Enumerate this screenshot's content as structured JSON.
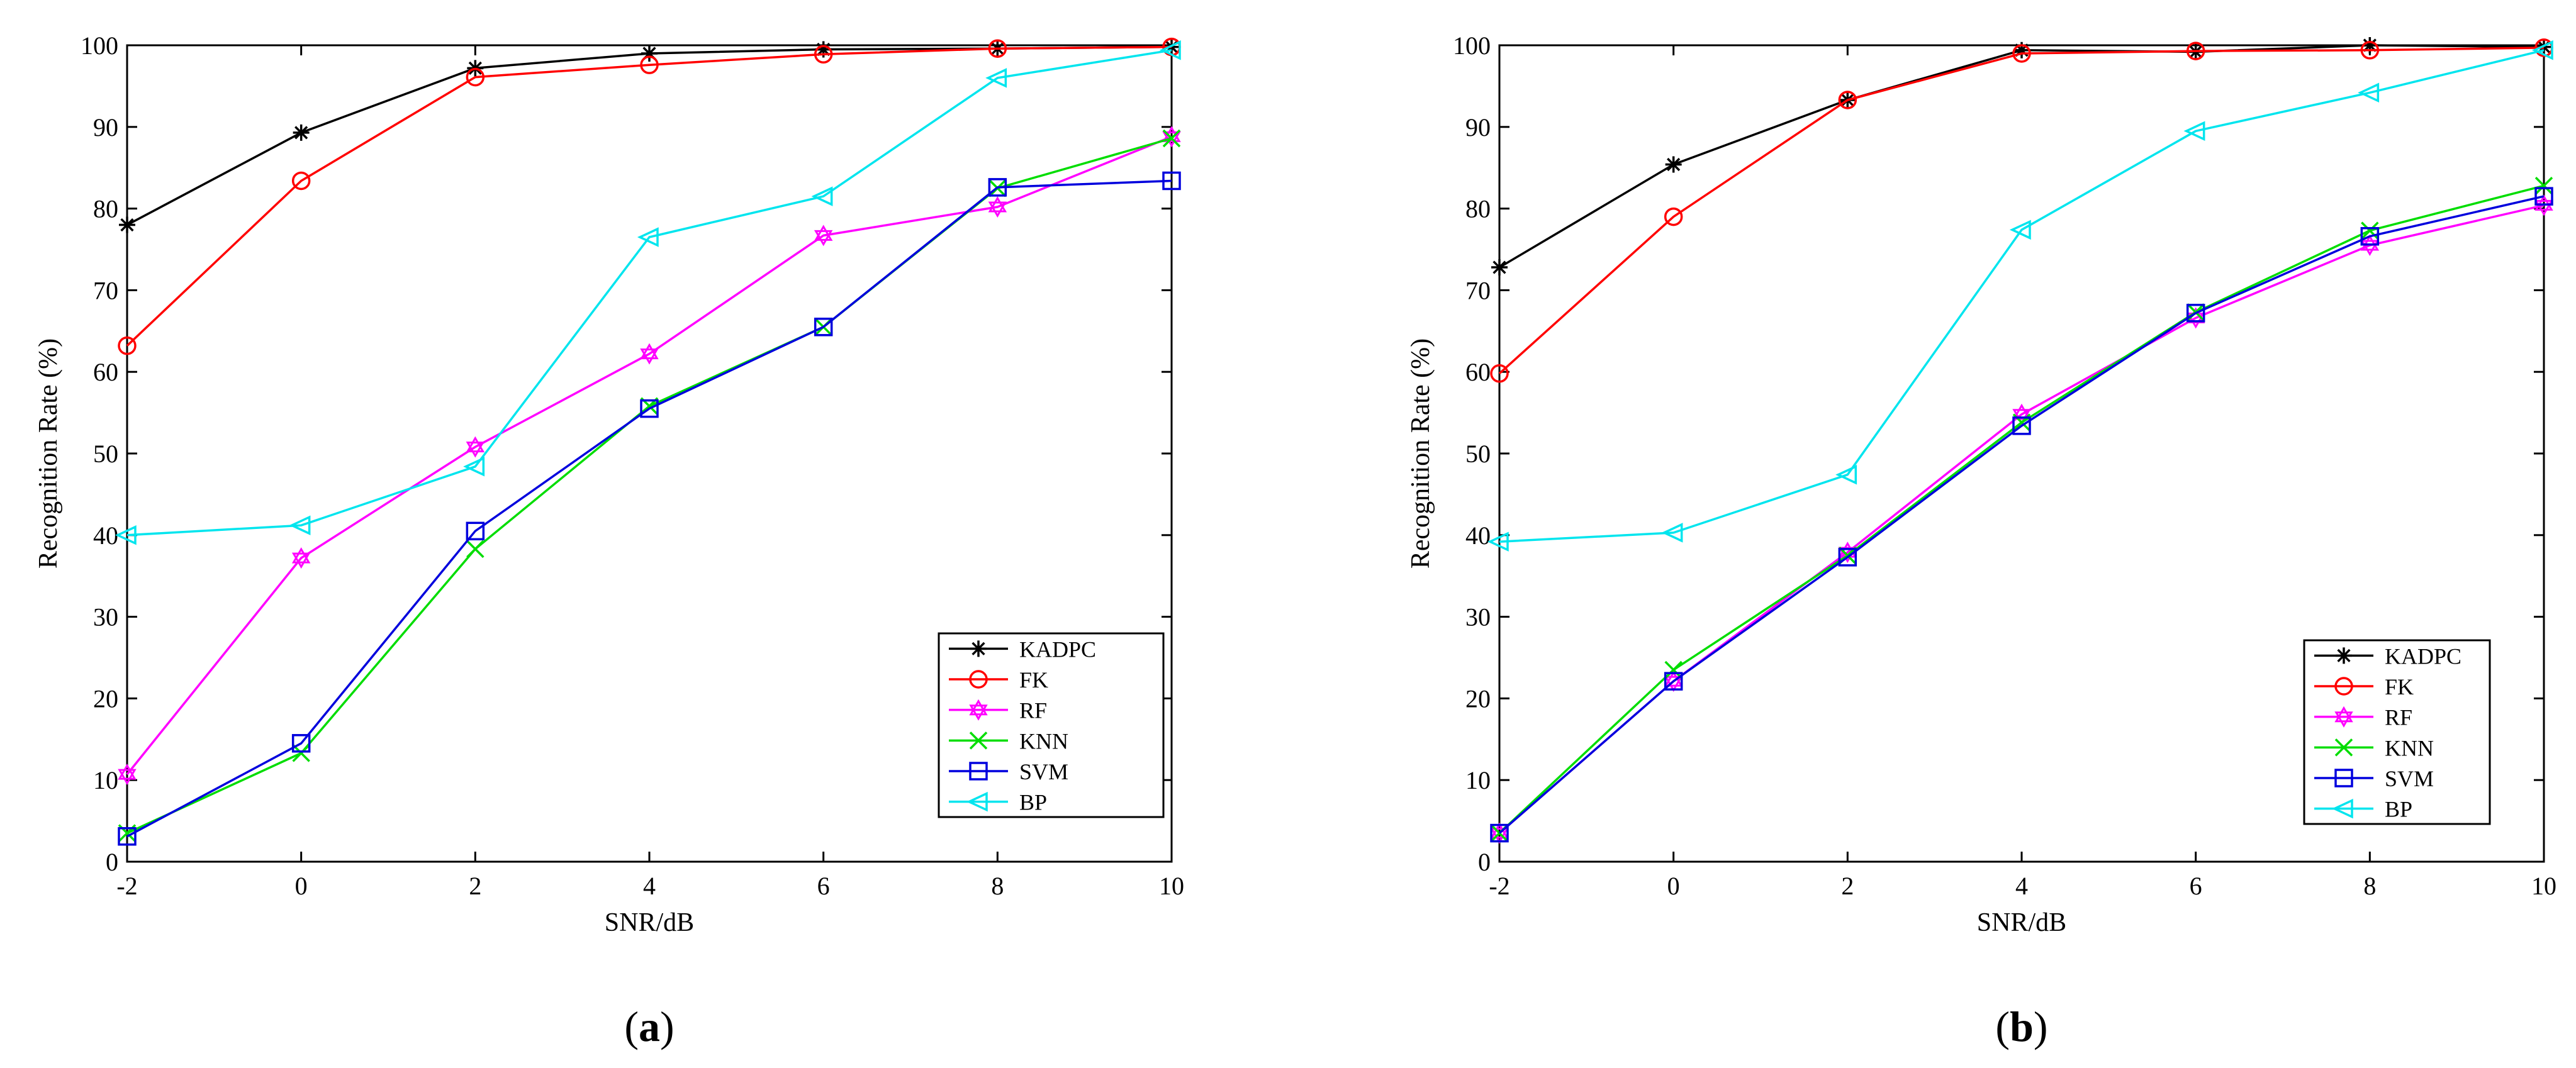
{
  "chart_data": [
    {
      "type": "line",
      "panel_label": "a",
      "xlabel": "SNR/dB",
      "ylabel": "Recognition Rate (%)",
      "xlim": [
        -2,
        10
      ],
      "ylim": [
        0,
        100
      ],
      "x": [
        -2,
        0,
        2,
        4,
        6,
        8,
        10
      ],
      "xticks": [
        "-2",
        "0",
        "2",
        "4",
        "6",
        "8",
        "10"
      ],
      "yticks": [
        "0",
        "10",
        "20",
        "30",
        "40",
        "50",
        "60",
        "70",
        "80",
        "90",
        "100"
      ],
      "grid": false,
      "legend_position": "bottom-right",
      "series": [
        {
          "name": "KADPC",
          "color": "#000000",
          "marker": "asterisk",
          "values": [
            78,
            89.3,
            97.2,
            99,
            99.5,
            99.6,
            99.8
          ]
        },
        {
          "name": "FK",
          "color": "#ff0000",
          "marker": "circle",
          "values": [
            63.2,
            83.4,
            96.1,
            97.6,
            98.9,
            99.6,
            99.8
          ]
        },
        {
          "name": "RF",
          "color": "#ff00ff",
          "marker": "hexagram",
          "values": [
            10.7,
            37.2,
            50.8,
            62.2,
            76.7,
            80.2,
            88.8
          ]
        },
        {
          "name": "KNN",
          "color": "#00dd00",
          "marker": "x",
          "values": [
            3.5,
            13.3,
            38.3,
            55.8,
            65.5,
            82.5,
            88.6
          ]
        },
        {
          "name": "SVM",
          "color": "#0000dd",
          "marker": "square",
          "values": [
            3.1,
            14.5,
            40.5,
            55.5,
            65.5,
            82.6,
            83.4
          ]
        },
        {
          "name": "BP",
          "color": "#00e5ee",
          "marker": "triangle-left",
          "values": [
            40,
            41.2,
            48.4,
            76.5,
            81.5,
            96,
            99.4
          ]
        }
      ]
    },
    {
      "type": "line",
      "panel_label": "b",
      "xlabel": "SNR/dB",
      "ylabel": "Recognition Rate (%)",
      "xlim": [
        -2,
        10
      ],
      "ylim": [
        0,
        100
      ],
      "x": [
        -2,
        0,
        2,
        4,
        6,
        8,
        10
      ],
      "xticks": [
        "-2",
        "0",
        "2",
        "4",
        "6",
        "8",
        "10"
      ],
      "yticks": [
        "0",
        "10",
        "20",
        "30",
        "40",
        "50",
        "60",
        "70",
        "80",
        "90",
        "100"
      ],
      "grid": false,
      "legend_position": "bottom-right",
      "series": [
        {
          "name": "KADPC",
          "color": "#000000",
          "marker": "asterisk",
          "values": [
            72.8,
            85.4,
            93.3,
            99.4,
            99.2,
            100,
            99.8
          ]
        },
        {
          "name": "FK",
          "color": "#ff0000",
          "marker": "circle",
          "values": [
            59.8,
            79,
            93.3,
            99,
            99.3,
            99.4,
            99.7
          ]
        },
        {
          "name": "RF",
          "color": "#ff00ff",
          "marker": "hexagram",
          "values": [
            3.5,
            22.1,
            37.9,
            54.8,
            66.6,
            75.5,
            80.4
          ]
        },
        {
          "name": "KNN",
          "color": "#00dd00",
          "marker": "x",
          "values": [
            3.5,
            23.5,
            37.5,
            53.8,
            67.3,
            77.3,
            82.8
          ]
        },
        {
          "name": "SVM",
          "color": "#0000dd",
          "marker": "square",
          "values": [
            3.5,
            22.1,
            37.3,
            53.4,
            67.2,
            76.6,
            81.5
          ]
        },
        {
          "name": "BP",
          "color": "#00e5ee",
          "marker": "triangle-left",
          "values": [
            39.2,
            40.3,
            47.4,
            77.4,
            89.5,
            94.2,
            99.4
          ]
        }
      ]
    }
  ]
}
